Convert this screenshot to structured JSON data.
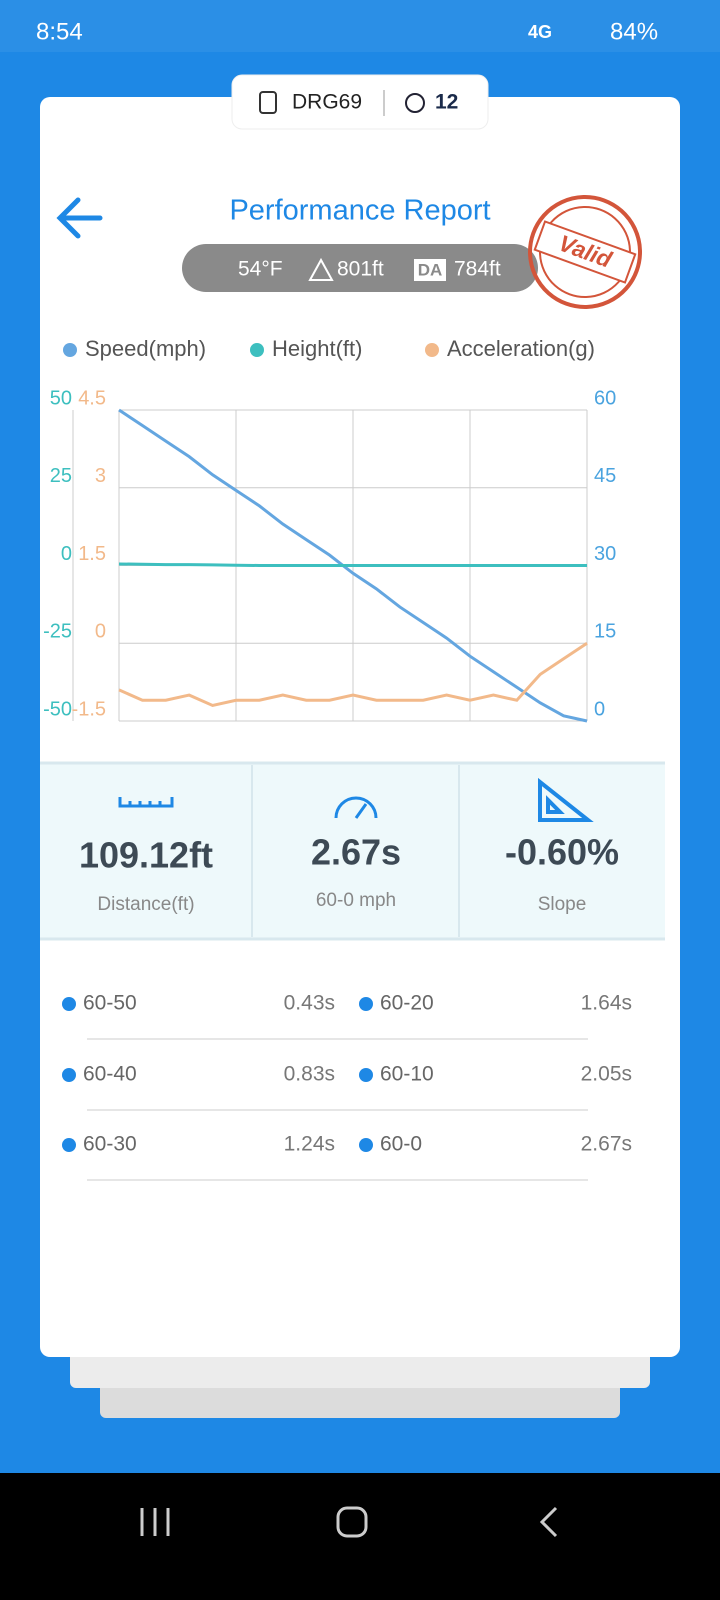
{
  "status_bar": {
    "time": "8:54",
    "network": "4G",
    "battery": "84%"
  },
  "header": {
    "device": "DRG69",
    "satellites": "12"
  },
  "title": "Performance Report",
  "conditions": {
    "temperature": "54°F",
    "altitude": "801ft",
    "da_label": "DA",
    "density_altitude": "784ft"
  },
  "stamp": "Valid",
  "chart_data": {
    "type": "line",
    "categories": [
      null,
      null,
      null,
      null,
      null,
      null,
      null,
      null,
      null,
      null,
      null,
      null,
      null,
      null,
      null,
      null,
      null,
      null,
      null,
      null,
      null
    ],
    "series": [
      {
        "name": "Speed(mph)",
        "color": "#64a6e0",
        "axis": "y2",
        "values": [
          60,
          57,
          54,
          51,
          47.5,
          44.5,
          41.5,
          38,
          35,
          32,
          28.5,
          25.5,
          22,
          19,
          16,
          12.5,
          9.5,
          6.5,
          3.5,
          1,
          0
        ]
      },
      {
        "name": "Height(ft)",
        "color": "#3dbfbf",
        "axis": "y",
        "values": [
          0.5,
          0.4,
          0.3,
          0.3,
          0.2,
          0.1,
          0,
          0,
          0,
          0,
          0,
          0,
          0,
          0,
          0,
          0,
          0,
          0,
          0,
          0,
          0
        ]
      },
      {
        "name": "Acceleration(g)",
        "color": "#f2b98a",
        "axis": "y3",
        "values": [
          -0.9,
          -1.1,
          -1.1,
          -1,
          -1.2,
          -1.1,
          -1.1,
          -1,
          -1.1,
          -1.1,
          -1,
          -1.1,
          -1.1,
          -1.1,
          -1,
          -1.1,
          -1,
          -1.1,
          -0.6,
          -0.3,
          0
        ]
      }
    ],
    "ylim": [
      -50,
      50
    ],
    "yticks": [
      50,
      25,
      0,
      -25,
      -50
    ],
    "ycolor": "#3dbfbf",
    "y2lim": [
      0,
      60
    ],
    "y2ticks": [
      60,
      45,
      30,
      15,
      0
    ],
    "y2color": "#4aa3df",
    "y3lim": [
      -1.5,
      4.5
    ],
    "y3ticks": [
      4.5,
      3,
      1.5,
      0,
      -1.5
    ],
    "y3color": "#f2b98a",
    "grid": true
  },
  "stats": [
    {
      "value": "109.12ft",
      "label": "Distance(ft)"
    },
    {
      "value": "2.67s",
      "label": "60-0 mph"
    },
    {
      "value": "-0.60%",
      "label": "Slope"
    }
  ],
  "splits": [
    {
      "range": "60-50",
      "time": "0.43s"
    },
    {
      "range": "60-40",
      "time": "0.83s"
    },
    {
      "range": "60-30",
      "time": "1.24s"
    },
    {
      "range": "60-20",
      "time": "1.64s"
    },
    {
      "range": "60-10",
      "time": "2.05s"
    },
    {
      "range": "60-0",
      "time": "2.67s"
    }
  ]
}
